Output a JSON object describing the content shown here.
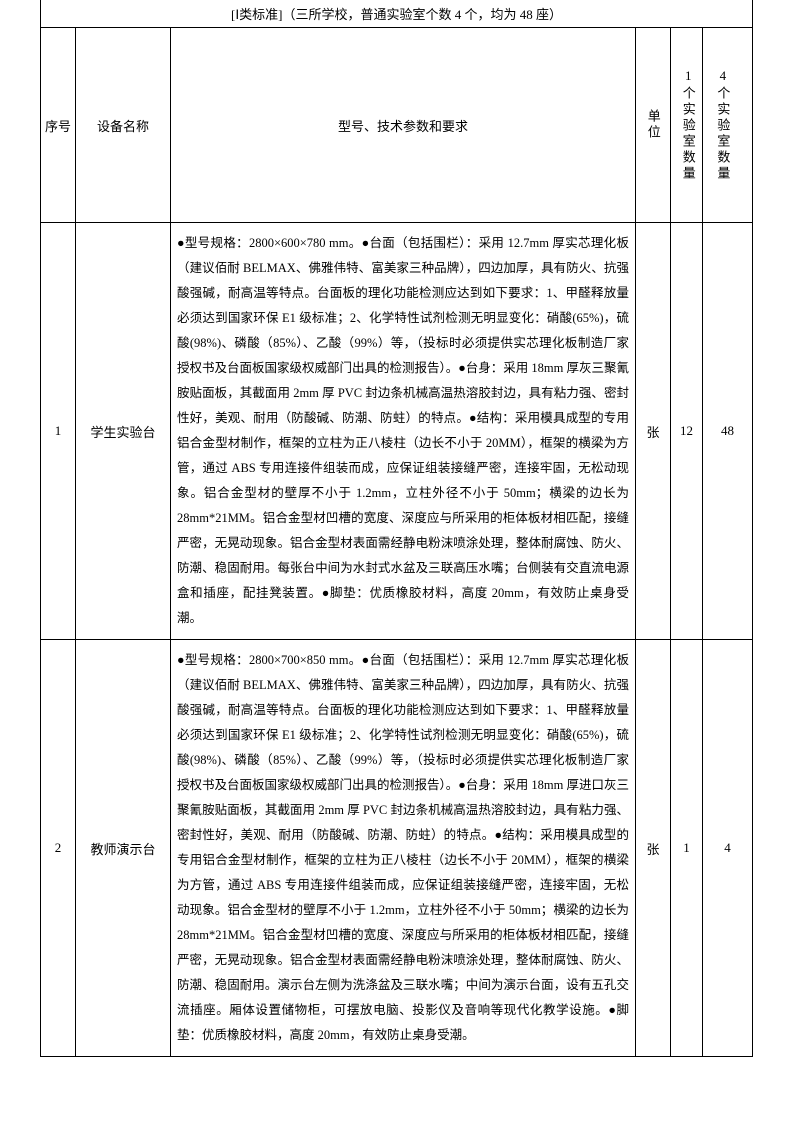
{
  "page_title": "[Ⅰ类标准]（三所学校，普通实验室个数 4 个，均为 48 座）",
  "headers": {
    "seq": "序号",
    "name": "设备名称",
    "spec": "型号、技术参数和要求",
    "unit": "单位",
    "qty1": "1个实验室数量",
    "qty4": "4个实验室数量"
  },
  "rows": [
    {
      "seq": "1",
      "name": "学生实验台",
      "spec": "●型号规格：2800×600×780 mm。●台面（包括围栏）：采用 12.7mm 厚实芯理化板（建议佰耐 BELMAX、佛雅伟特、富美家三种品牌），四边加厚，具有防火、抗强酸强碱，耐高温等特点。台面板的理化功能检测应达到如下要求：1、甲醛释放量必须达到国家环保 E1 级标准；2、化学特性试剂检测无明显变化：硝酸(65%)，硫酸(98%)、磷酸（85%）、乙酸（99%）等，（投标时必须提供实芯理化板制造厂家授权书及台面板国家级权威部门出具的检测报告）。●台身：采用 18mm 厚灰三聚氰胺贴面板，其截面用 2mm 厚 PVC 封边条机械高温热溶胶封边，具有粘力强、密封性好，美观、耐用（防酸碱、防潮、防蛀）的特点。●结构：采用模具成型的专用铝合金型材制作，框架的立柱为正八棱柱（边长不小于 20MM），框架的横梁为方管，通过 ABS 专用连接件组装而成，应保证组装接缝严密，连接牢固，无松动现象。铝合金型材的壁厚不小于 1.2mm，立柱外径不小于 50mm；横梁的边长为 28mm*21MM。铝合金型材凹槽的宽度、深度应与所采用的柜体板材相匹配，接缝严密，无晃动现象。铝合金型材表面需经静电粉沫喷涂处理，整体耐腐蚀、防火、防潮、稳固耐用。每张台中间为水封式水盆及三联高压水嘴；台侧装有交直流电源盒和插座，配挂凳装置。●脚垫：优质橡胶材料，高度 20mm，有效防止桌身受潮。",
      "unit": "张",
      "qty1": "12",
      "qty4": "48"
    },
    {
      "seq": "2",
      "name": "教师演示台",
      "spec": "●型号规格：2800×700×850 mm。●台面（包括围栏）：采用 12.7mm 厚实芯理化板（建议佰耐 BELMAX、佛雅伟特、富美家三种品牌），四边加厚，具有防火、抗强酸强碱，耐高温等特点。台面板的理化功能检测应达到如下要求：1、甲醛释放量必须达到国家环保 E1 级标准；2、化学特性试剂检测无明显变化：硝酸(65%)，硫酸(98%)、磷酸（85%）、乙酸（99%）等，（投标时必须提供实芯理化板制造厂家授权书及台面板国家级权威部门出具的检测报告）。●台身：采用 18mm 厚进口灰三聚氰胺贴面板，其截面用 2mm 厚 PVC 封边条机械高温热溶胶封边，具有粘力强、密封性好，美观、耐用（防酸碱、防潮、防蛀）的特点。●结构：采用模具成型的专用铝合金型材制作，框架的立柱为正八棱柱（边长不小于 20MM），框架的横梁为方管，通过 ABS 专用连接件组装而成，应保证组装接缝严密，连接牢固，无松动现象。铝合金型材的壁厚不小于 1.2mm，立柱外径不小于 50mm；横梁的边长为 28mm*21MM。铝合金型材凹槽的宽度、深度应与所采用的柜体板材相匹配，接缝严密，无晃动现象。铝合金型材表面需经静电粉沫喷涂处理，整体耐腐蚀、防火、防潮、稳固耐用。演示台左侧为洗涤盆及三联水嘴；中间为演示台面，设有五孔交流插座。厢体设置储物柜，可摆放电脑、投影仪及音响等现代化教学设施。●脚垫：优质橡胶材料，高度 20mm，有效防止桌身受潮。",
      "unit": "张",
      "qty1": "1",
      "qty4": "4"
    }
  ]
}
